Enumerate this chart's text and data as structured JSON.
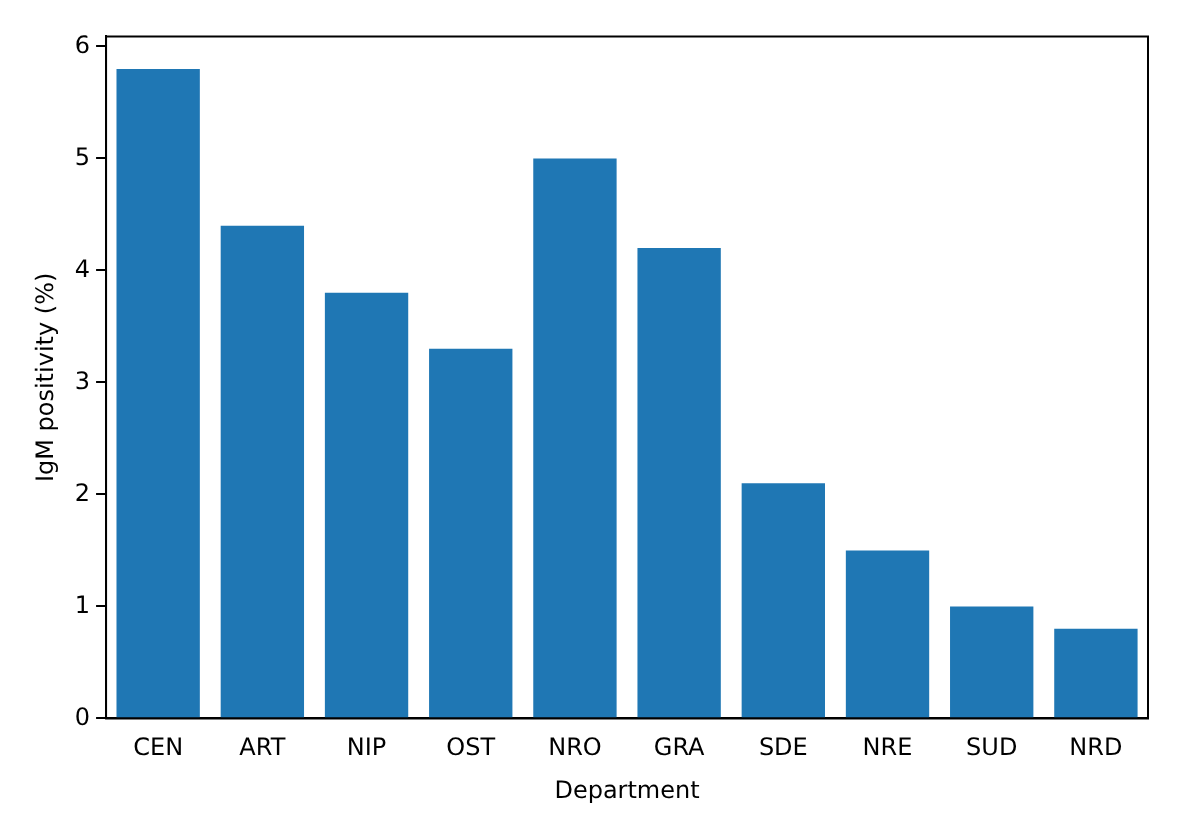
{
  "chart_data": {
    "type": "bar",
    "xlabel": "Department",
    "ylabel": "IgM positivity (%)",
    "categories": [
      "CEN",
      "ART",
      "NIP",
      "OST",
      "NRO",
      "GRA",
      "SDE",
      "NRE",
      "SUD",
      "NRD"
    ],
    "values": [
      5.8,
      4.4,
      3.8,
      3.3,
      5.0,
      4.2,
      2.1,
      1.5,
      1.0,
      0.8
    ],
    "color": "#1f77b4",
    "ylim": [
      0,
      6.09
    ],
    "yticks": [
      0,
      1,
      2,
      3,
      4,
      5,
      6
    ],
    "grid": false,
    "legend": false
  }
}
